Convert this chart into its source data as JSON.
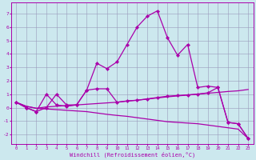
{
  "xlabel": "Windchill (Refroidissement éolien,°C)",
  "bg_color": "#cce8ee",
  "grid_color": "#9999bb",
  "line_color": "#aa00aa",
  "x_data": [
    0,
    1,
    2,
    3,
    4,
    5,
    6,
    7,
    8,
    9,
    10,
    11,
    12,
    13,
    14,
    15,
    16,
    17,
    18,
    19,
    20,
    21,
    22,
    23
  ],
  "series1_y": [
    0.4,
    0.0,
    -0.3,
    1.0,
    0.2,
    0.1,
    0.2,
    1.3,
    3.3,
    2.9,
    3.4,
    4.7,
    6.0,
    6.8,
    7.2,
    5.2,
    3.9,
    4.7,
    1.5,
    1.6,
    1.5,
    -1.1,
    -1.2,
    -2.3
  ],
  "series2_x": [
    0,
    1,
    2,
    3,
    4,
    5,
    6,
    7,
    8,
    9,
    10,
    11,
    12,
    13,
    14,
    15,
    16,
    17,
    18,
    19,
    20,
    21,
    22,
    23
  ],
  "series2_y": [
    0.4,
    0.0,
    -0.3,
    0.0,
    1.0,
    0.2,
    0.2,
    1.3,
    1.4,
    1.4,
    0.4,
    0.5,
    0.55,
    0.65,
    0.75,
    0.85,
    0.9,
    0.95,
    1.0,
    1.1,
    1.5,
    -1.1,
    -1.2,
    -2.3
  ],
  "series3_y": [
    0.4,
    0.1,
    -0.05,
    0.05,
    0.1,
    0.15,
    0.2,
    0.25,
    0.3,
    0.35,
    0.4,
    0.48,
    0.55,
    0.63,
    0.72,
    0.8,
    0.87,
    0.93,
    1.0,
    1.07,
    1.13,
    1.2,
    1.25,
    1.35
  ],
  "series4_y": [
    0.4,
    0.1,
    -0.05,
    -0.1,
    -0.15,
    -0.2,
    -0.25,
    -0.3,
    -0.4,
    -0.5,
    -0.58,
    -0.65,
    -0.75,
    -0.85,
    -0.95,
    -1.05,
    -1.1,
    -1.15,
    -1.2,
    -1.3,
    -1.4,
    -1.5,
    -1.6,
    -2.3
  ],
  "ylim": [
    -2.7,
    7.8
  ],
  "xlim": [
    -0.5,
    23.5
  ],
  "yticks": [
    -2,
    -1,
    0,
    1,
    2,
    3,
    4,
    5,
    6,
    7
  ],
  "xticks": [
    0,
    1,
    2,
    3,
    4,
    5,
    6,
    7,
    8,
    9,
    10,
    11,
    12,
    13,
    14,
    15,
    16,
    17,
    18,
    19,
    20,
    21,
    22,
    23
  ]
}
